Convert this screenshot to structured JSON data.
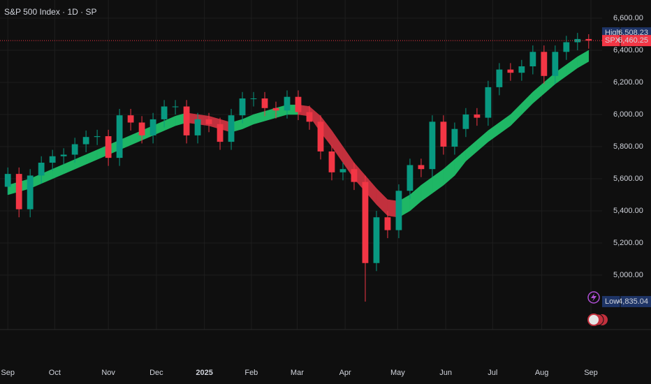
{
  "chart_data": {
    "type": "candlestick",
    "title": "S&P 500 Index · 1D · SP",
    "x": [
      0,
      1,
      2,
      3,
      4,
      5,
      6,
      7,
      8,
      9,
      10,
      11,
      12,
      13,
      14,
      15,
      16,
      17,
      18,
      19,
      20,
      21,
      22,
      23,
      24,
      25,
      26,
      27,
      28,
      29,
      30,
      31,
      32,
      33,
      34,
      35,
      36,
      37,
      38,
      39,
      40,
      41,
      42,
      43,
      44,
      45,
      46,
      47,
      48,
      49,
      50,
      51,
      52
    ],
    "open": [
      5550,
      5630,
      5410,
      5620,
      5700,
      5740,
      5750,
      5815,
      5860,
      5865,
      5730,
      5995,
      5950,
      5870,
      5970,
      6050,
      6050,
      5870,
      5970,
      5940,
      5830,
      5995,
      6100,
      6100,
      6040,
      6025,
      6110,
      6015,
      5955,
      5770,
      5640,
      5660,
      5580,
      5075,
      5360,
      5280,
      5525,
      5685,
      5660,
      5955,
      5800,
      5910,
      6000,
      5980,
      6170,
      6280,
      6260,
      6300,
      6390,
      6240,
      6390,
      6450,
      6470
    ],
    "high": [
      5670,
      5670,
      5660,
      5740,
      5780,
      5790,
      5855,
      5900,
      5905,
      5905,
      6035,
      6035,
      5990,
      6010,
      6090,
      6090,
      6090,
      6010,
      6010,
      5980,
      6035,
      6140,
      6140,
      6140,
      6080,
      6150,
      6150,
      6055,
      5995,
      5810,
      5700,
      5700,
      5620,
      5400,
      5400,
      5565,
      5725,
      5725,
      5995,
      5995,
      5950,
      6040,
      6040,
      6210,
      6320,
      6320,
      6340,
      6430,
      6430,
      6430,
      6490,
      6508.23,
      6500
    ],
    "low": [
      5500,
      5360,
      5360,
      5570,
      5650,
      5690,
      5700,
      5765,
      5810,
      5680,
      5680,
      5900,
      5820,
      5820,
      5920,
      6000,
      5820,
      5820,
      5890,
      5780,
      5780,
      5945,
      6050,
      5990,
      5975,
      5975,
      5965,
      5905,
      5720,
      5590,
      5590,
      5530,
      4835.04,
      5025,
      5230,
      5230,
      5475,
      5610,
      5610,
      5750,
      5750,
      5860,
      5930,
      5930,
      6120,
      6210,
      6210,
      6250,
      6190,
      6190,
      6340,
      6400,
      6410
    ],
    "close": [
      5630,
      5410,
      5620,
      5700,
      5740,
      5750,
      5815,
      5860,
      5865,
      5730,
      5995,
      5950,
      5870,
      5970,
      6050,
      6050,
      5870,
      5970,
      5940,
      5830,
      5995,
      6100,
      6100,
      6040,
      6025,
      6110,
      6015,
      5955,
      5770,
      5640,
      5660,
      5580,
      5075,
      5360,
      5280,
      5525,
      5685,
      5660,
      5955,
      5800,
      5910,
      6000,
      5980,
      6170,
      6280,
      6260,
      6300,
      6390,
      6240,
      6390,
      6450,
      6470,
      6460.25
    ],
    "up_color": "#089981",
    "down_color": "#f23645",
    "band": {
      "upper": [
        5560,
        5580,
        5600,
        5630,
        5660,
        5690,
        5720,
        5750,
        5780,
        5810,
        5840,
        5870,
        5900,
        5930,
        5960,
        5990,
        6010,
        6000,
        5990,
        5970,
        5950,
        5970,
        6000,
        6020,
        6040,
        6060,
        6060,
        6050,
        5990,
        5900,
        5800,
        5700,
        5620,
        5540,
        5470,
        5460,
        5500,
        5560,
        5610,
        5660,
        5720,
        5780,
        5840,
        5900,
        5950,
        6000,
        6070,
        6140,
        6200,
        6260,
        6310,
        6360,
        6400
      ],
      "lower": [
        5500,
        5520,
        5540,
        5570,
        5600,
        5630,
        5660,
        5690,
        5720,
        5750,
        5780,
        5810,
        5840,
        5870,
        5900,
        5930,
        5950,
        5940,
        5930,
        5910,
        5890,
        5910,
        5940,
        5960,
        5980,
        6000,
        6000,
        5990,
        5890,
        5800,
        5700,
        5600,
        5520,
        5440,
        5370,
        5360,
        5400,
        5460,
        5510,
        5560,
        5620,
        5710,
        5770,
        5830,
        5880,
        5930,
        6000,
        6070,
        6130,
        6190,
        6240,
        6290,
        6330
      ],
      "rising_color": "#1fb765",
      "falling_color": "#c2303d"
    },
    "xlim": [
      -0.7,
      53.2
    ],
    "ylim": [
      4661,
      6713
    ],
    "xticks": [
      {
        "value": 0,
        "label": "Sep"
      },
      {
        "value": 4.2,
        "label": "Oct"
      },
      {
        "value": 9,
        "label": "Nov"
      },
      {
        "value": 13.3,
        "label": "Dec"
      },
      {
        "value": 17.6,
        "label": "2025"
      },
      {
        "value": 21.8,
        "label": "Feb"
      },
      {
        "value": 25.9,
        "label": "Mar"
      },
      {
        "value": 30.2,
        "label": "Apr"
      },
      {
        "value": 34.9,
        "label": "May"
      },
      {
        "value": 39.2,
        "label": "Jun"
      },
      {
        "value": 43.4,
        "label": "Jul"
      },
      {
        "value": 47.8,
        "label": "Aug"
      },
      {
        "value": 52.2,
        "label": "Sep"
      }
    ],
    "yticks": [
      {
        "value": 5000,
        "label": "5,000.00"
      },
      {
        "value": 5200,
        "label": "5,200.00"
      },
      {
        "value": 5400,
        "label": "5,400.00"
      },
      {
        "value": 5600,
        "label": "5,600.00"
      },
      {
        "value": 5800,
        "label": "5,800.00"
      },
      {
        "value": 6000,
        "label": "6,000.00"
      },
      {
        "value": 6200,
        "label": "6,200.00"
      },
      {
        "value": 6400,
        "label": "6,400.00"
      },
      {
        "value": 6600,
        "label": "6,600.00"
      }
    ],
    "grid": true,
    "markers": [
      {
        "name": "High",
        "value": 6508.23,
        "label": "6,508.23",
        "color": "#1e3466"
      },
      {
        "name": "SPX",
        "value": 6460.25,
        "label": "6,460.25",
        "color": "#f23645"
      },
      {
        "name": "Low",
        "value": 4835.04,
        "label": "4,835.04",
        "color": "#1e3466"
      }
    ]
  }
}
